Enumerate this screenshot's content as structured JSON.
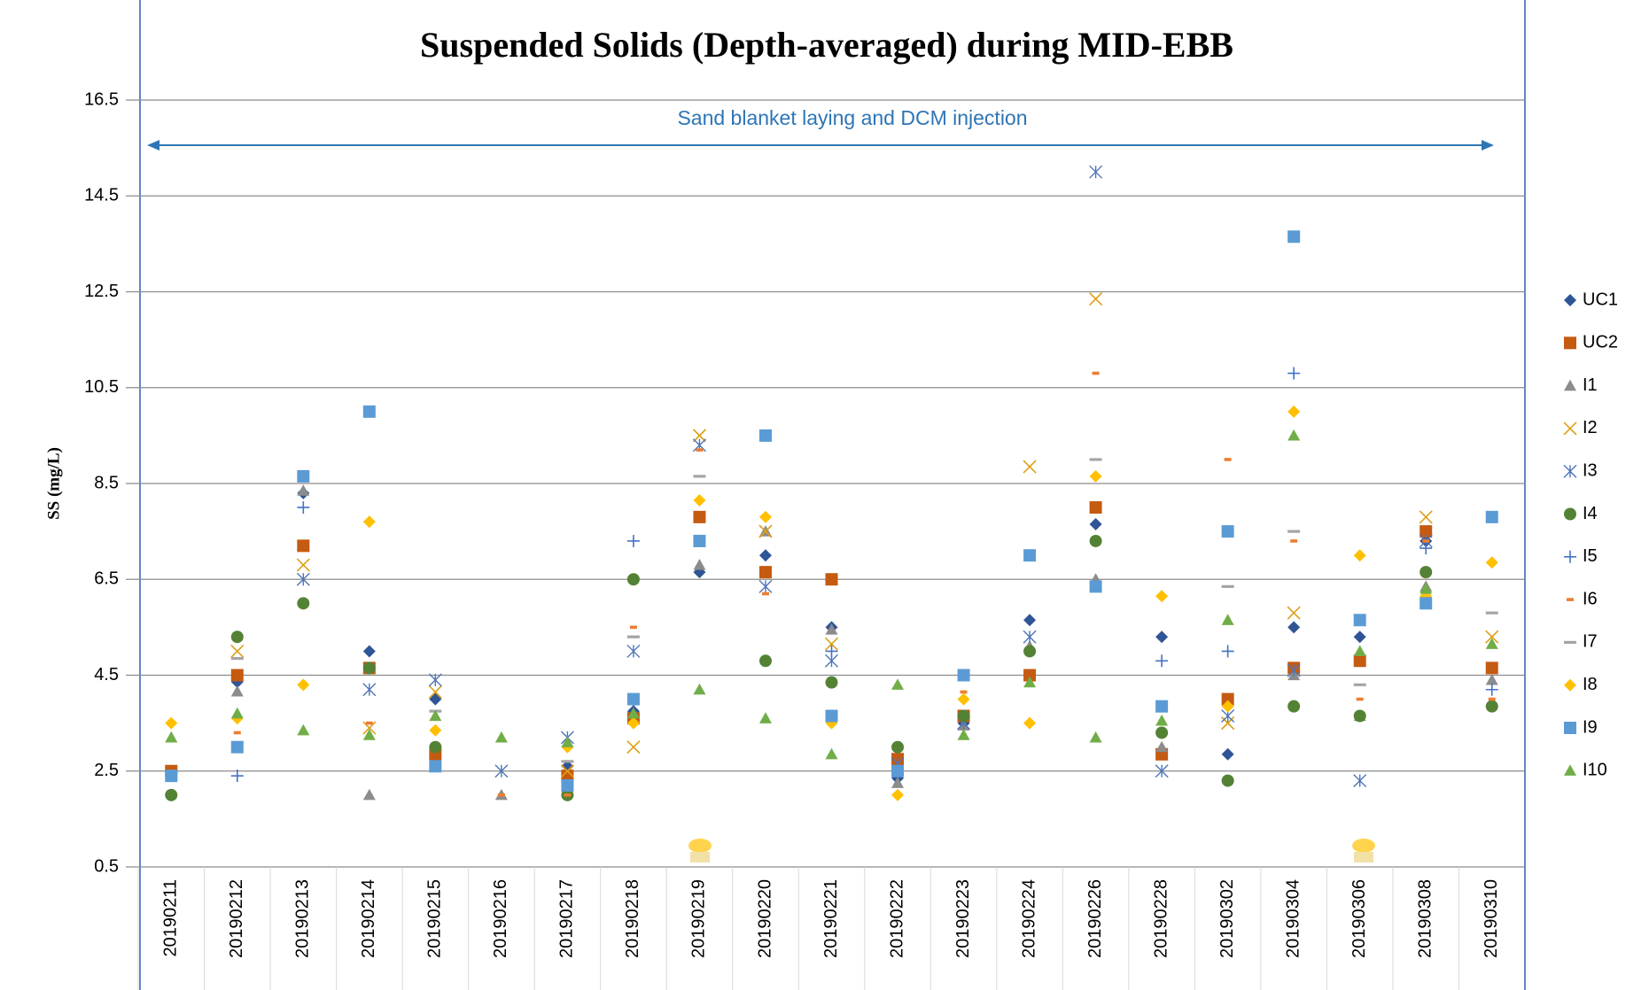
{
  "chart_data": {
    "type": "scatter",
    "title": "Suspended Solids (Depth-averaged) during MID-EBB",
    "y_label": "SS (mg/L)",
    "annotation": "Sand blanket laying and DCM injection",
    "categories": [
      "20190211",
      "20190212",
      "20190213",
      "20190214",
      "20190215",
      "20190216",
      "20190217",
      "20190218",
      "20190219",
      "20190220",
      "20190221",
      "20190222",
      "20190223",
      "20190224",
      "20190226",
      "20190228",
      "20190302",
      "20190304",
      "20190306",
      "20190308",
      "20190310"
    ],
    "ylim": [
      0.5,
      16.5
    ],
    "yticks": [
      0.5,
      2.5,
      4.5,
      6.5,
      8.5,
      10.5,
      12.5,
      14.5,
      16.5
    ],
    "grid": true,
    "legend": "right",
    "series": [
      {
        "name": "UC1",
        "color": "#2f5597",
        "marker": "diamond",
        "values": [
          2.0,
          4.36,
          8.3,
          5.0,
          4.0,
          null,
          2.6,
          3.75,
          6.65,
          7.0,
          5.5,
          2.35,
          3.5,
          5.65,
          7.65,
          5.3,
          2.85,
          5.5,
          5.3,
          7.3,
          null
        ]
      },
      {
        "name": "UC2",
        "color": "#c55a11",
        "marker": "square",
        "values": [
          2.5,
          4.5,
          7.2,
          4.65,
          2.85,
          null,
          2.4,
          3.6,
          7.8,
          6.65,
          6.5,
          2.75,
          3.65,
          4.5,
          8.0,
          2.85,
          4.0,
          4.65,
          4.8,
          7.5,
          4.65
        ]
      },
      {
        "name": "I1",
        "color": "#8c8c8c",
        "marker": "triangle",
        "values": [
          3.2,
          4.16,
          8.35,
          2.0,
          null,
          2.0,
          null,
          null,
          6.8,
          7.5,
          5.45,
          2.25,
          3.45,
          5.1,
          6.5,
          3.0,
          null,
          4.5,
          3.65,
          6.35,
          4.4
        ]
      },
      {
        "name": "I2",
        "color": "#dda015",
        "marker": "x",
        "values": [
          null,
          5.0,
          6.8,
          3.4,
          4.15,
          null,
          2.5,
          3.0,
          9.5,
          7.5,
          5.15,
          null,
          null,
          8.85,
          12.35,
          null,
          3.5,
          5.8,
          null,
          7.8,
          5.3
        ]
      },
      {
        "name": "I3",
        "color": "#4f75b8",
        "marker": "asterisk",
        "values": [
          null,
          null,
          6.5,
          4.2,
          4.4,
          2.5,
          3.2,
          5.0,
          9.3,
          6.35,
          4.8,
          2.65,
          3.5,
          5.3,
          15.0,
          2.5,
          3.65,
          4.6,
          2.3,
          7.3,
          null
        ]
      },
      {
        "name": "I4",
        "color": "#548235",
        "marker": "circle",
        "values": [
          2.0,
          5.3,
          6.0,
          4.65,
          3.0,
          null,
          2.0,
          6.5,
          null,
          4.8,
          4.35,
          3.0,
          3.65,
          5.0,
          7.3,
          3.3,
          2.3,
          3.85,
          3.65,
          6.65,
          3.85
        ]
      },
      {
        "name": "I5",
        "color": "#4472c4",
        "marker": "plus",
        "values": [
          null,
          2.4,
          8.0,
          null,
          null,
          null,
          null,
          7.3,
          null,
          null,
          5.0,
          null,
          null,
          null,
          null,
          4.8,
          5.0,
          10.8,
          null,
          7.15,
          4.2
        ]
      },
      {
        "name": "I6",
        "color": "#ed7d31",
        "marker": "dash",
        "values": [
          2.5,
          3.3,
          null,
          3.5,
          null,
          2.0,
          2.0,
          5.5,
          9.2,
          6.2,
          null,
          null,
          4.15,
          null,
          10.8,
          null,
          9.0,
          7.3,
          4.0,
          7.3,
          4.0
        ]
      },
      {
        "name": "I7",
        "color": "#a5a5a5",
        "marker": "wide-dash",
        "values": [
          null,
          4.85,
          null,
          null,
          3.75,
          null,
          2.7,
          5.3,
          8.65,
          null,
          null,
          null,
          4.6,
          null,
          9.0,
          null,
          6.35,
          7.5,
          4.3,
          null,
          5.8
        ]
      },
      {
        "name": "I8",
        "color": "#ffc000",
        "marker": "diamond",
        "values": [
          3.5,
          3.6,
          4.3,
          7.7,
          3.35,
          null,
          3.0,
          3.5,
          8.15,
          7.8,
          3.5,
          2.0,
          4.0,
          3.5,
          8.65,
          6.15,
          3.85,
          10.0,
          7.0,
          6.15,
          6.85
        ]
      },
      {
        "name": "I9",
        "color": "#5b9bd5",
        "marker": "square",
        "values": [
          2.4,
          3.0,
          8.65,
          10.0,
          2.6,
          null,
          2.2,
          4.0,
          7.3,
          9.5,
          3.65,
          2.5,
          4.5,
          7.0,
          6.35,
          3.85,
          7.5,
          13.65,
          5.65,
          6.0,
          7.8
        ]
      },
      {
        "name": "I10",
        "color": "#70ad47",
        "marker": "triangle",
        "values": [
          3.2,
          3.7,
          3.35,
          3.25,
          3.65,
          3.2,
          3.1,
          3.7,
          4.2,
          3.6,
          2.85,
          4.3,
          3.25,
          4.35,
          3.2,
          3.55,
          5.65,
          9.5,
          5.0,
          6.3,
          5.15
        ]
      }
    ]
  }
}
